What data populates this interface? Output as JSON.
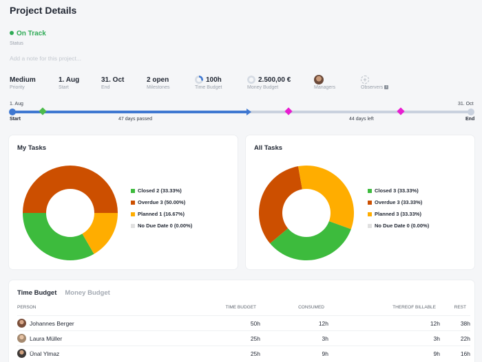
{
  "page": {
    "title": "Project Details"
  },
  "status": {
    "value": "On Track",
    "label": "Status",
    "color": "#2eaa55"
  },
  "note_placeholder": "Add a note for this project...",
  "meta": [
    {
      "value": "Medium",
      "label": "Priority"
    },
    {
      "value": "1. Aug",
      "label": "Start"
    },
    {
      "value": "31. Oct",
      "label": "End"
    },
    {
      "value": "2 open",
      "label": "Milestones"
    },
    {
      "value": "100h",
      "label": "Time Budget",
      "icon": "progress-ring-icon"
    },
    {
      "value": "2.500,00 €",
      "label": "Money Budget",
      "icon": "progress-ring-icon"
    },
    {
      "value": "",
      "label": "Managers",
      "icon": "avatar"
    },
    {
      "value": "",
      "label": "Observers",
      "icon": "add-observer-icon"
    }
  ],
  "timeline": {
    "start_date": "1. Aug",
    "end_date": "31. Oct",
    "start_label": "Start",
    "end_label": "End",
    "passed": "47 days passed",
    "left": "44 days left",
    "progress_percent": 52,
    "colors": {
      "fill": "#3f78d1",
      "track": "#c9d1de",
      "milestone_done": "#4cbb4c",
      "milestone_open": "#e81ed1"
    }
  },
  "my_tasks": {
    "title": "My Tasks",
    "legend": [
      {
        "label": "Closed 2 (33.33%)",
        "value": 2,
        "color": "#3dbb3d"
      },
      {
        "label": "Overdue 3 (50.00%)",
        "value": 3,
        "color": "#cc4f00"
      },
      {
        "label": "Planned 1 (16.67%)",
        "value": 1,
        "color": "#ffad00"
      },
      {
        "label": "No Due Date 0 (0.00%)",
        "value": 0,
        "color": "#e0e0e0"
      }
    ]
  },
  "all_tasks": {
    "title": "All Tasks",
    "legend": [
      {
        "label": "Closed 3 (33.33%)",
        "value": 3,
        "color": "#3dbb3d"
      },
      {
        "label": "Overdue 3 (33.33%)",
        "value": 3,
        "color": "#cc4f00"
      },
      {
        "label": "Planned 3 (33.33%)",
        "value": 3,
        "color": "#ffad00"
      },
      {
        "label": "No Due Date 0 (0.00%)",
        "value": 0,
        "color": "#e0e0e0"
      }
    ]
  },
  "budget": {
    "tabs": [
      "Time Budget",
      "Money Budget"
    ],
    "columns": [
      "Person",
      "Time Budget",
      "Consumed",
      "Thereof Billable",
      "Rest"
    ],
    "rows": [
      {
        "name": "Johannes Berger",
        "budget": "50h",
        "consumed": "12h",
        "billable": "12h",
        "rest": "38h"
      },
      {
        "name": "Laura Müller",
        "budget": "25h",
        "consumed": "3h",
        "billable": "3h",
        "rest": "22h"
      },
      {
        "name": "Ünal Ylmaz",
        "budget": "25h",
        "consumed": "9h",
        "billable": "9h",
        "rest": "16h"
      }
    ]
  }
}
